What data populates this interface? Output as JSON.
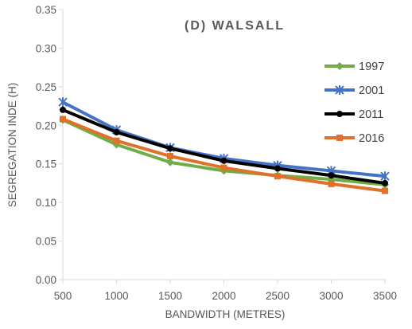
{
  "chart_data": {
    "type": "line",
    "title": "(D) WALSALL",
    "xlabel": "BANDWIDTH (METRES)",
    "ylabel": "SEGREGATION INDE (H)",
    "x": [
      500,
      1000,
      1500,
      2000,
      2500,
      3000,
      3500
    ],
    "x_tick_labels": [
      "500",
      "1000",
      "1500",
      "2000",
      "2500",
      "3000",
      "3500"
    ],
    "ylim": [
      0,
      0.35
    ],
    "y_ticks": [
      0,
      0.05,
      0.1,
      0.15,
      0.2,
      0.25,
      0.3,
      0.35
    ],
    "y_tick_labels": [
      "0.00",
      "0.05",
      "0.10",
      "0.15",
      "0.20",
      "0.25",
      "0.30",
      "0.35"
    ],
    "grid": false,
    "legend_position": "right",
    "series": [
      {
        "name": "1997",
        "color": "#70ad47",
        "marker": "diamond",
        "values": [
          0.207,
          0.175,
          0.152,
          0.141,
          0.135,
          0.13,
          0.123
        ]
      },
      {
        "name": "2001",
        "color": "#4472c4",
        "marker": "star",
        "values": [
          0.23,
          0.194,
          0.171,
          0.157,
          0.148,
          0.141,
          0.134
        ]
      },
      {
        "name": "2011",
        "color": "#000000",
        "marker": "circle",
        "values": [
          0.22,
          0.191,
          0.17,
          0.154,
          0.144,
          0.135,
          0.125
        ]
      },
      {
        "name": "2016",
        "color": "#e0702a",
        "marker": "square",
        "values": [
          0.208,
          0.18,
          0.16,
          0.145,
          0.134,
          0.124,
          0.115
        ]
      }
    ]
  }
}
